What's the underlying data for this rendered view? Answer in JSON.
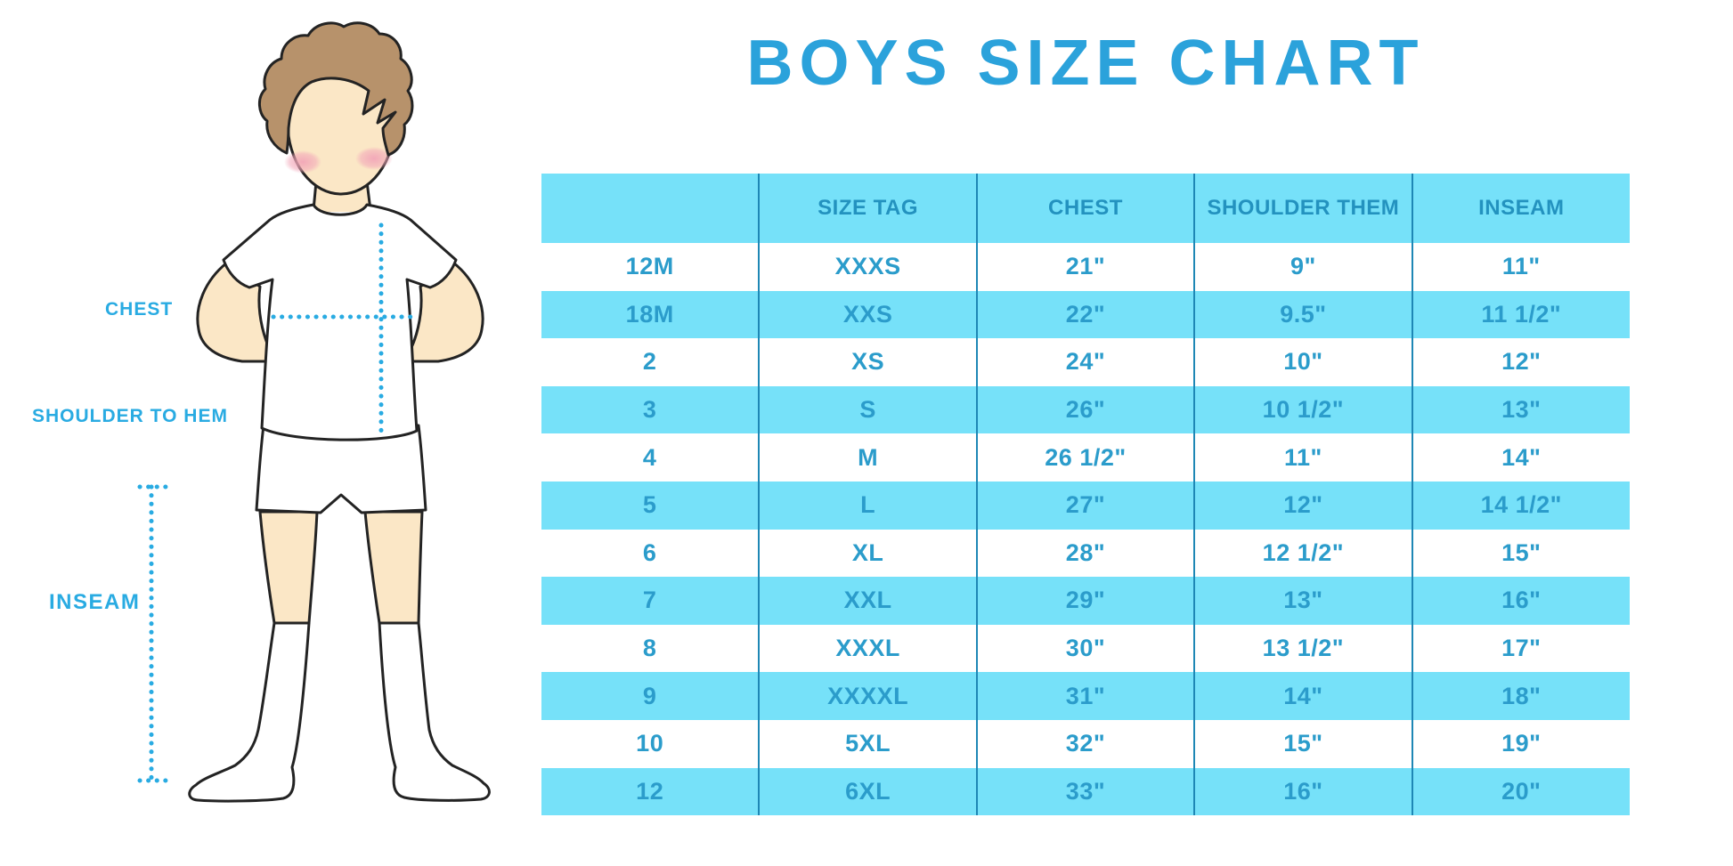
{
  "title": "BOYS SIZE CHART",
  "figure_labels": {
    "chest": "CHEST",
    "shoulder_to_hem": "SHOULDER TO HEM",
    "inseam": "INSEAM"
  },
  "chart_data": {
    "type": "table",
    "title": "BOYS SIZE CHART",
    "columns": [
      "",
      "SIZE TAG",
      "CHEST",
      "SHOULDER THEM",
      "INSEAM"
    ],
    "rows": [
      [
        "12M",
        "XXXS",
        "21\"",
        "9\"",
        "11\""
      ],
      [
        "18M",
        "XXS",
        "22\"",
        "9.5\"",
        "11 1/2\""
      ],
      [
        "2",
        "XS",
        "24\"",
        "10\"",
        "12\""
      ],
      [
        "3",
        "S",
        "26\"",
        "10 1/2\"",
        "13\""
      ],
      [
        "4",
        "M",
        "26 1/2\"",
        "11\"",
        "14\""
      ],
      [
        "5",
        "L",
        "27\"",
        "12\"",
        "14 1/2\""
      ],
      [
        "6",
        "XL",
        "28\"",
        "12 1/2\"",
        "15\""
      ],
      [
        "7",
        "XXL",
        "29\"",
        "13\"",
        "16\""
      ],
      [
        "8",
        "XXXL",
        "30\"",
        "13 1/2\"",
        "17\""
      ],
      [
        "9",
        "XXXXL",
        "31\"",
        "14\"",
        "18\""
      ],
      [
        "10",
        "5XL",
        "32\"",
        "15\"",
        "19\""
      ],
      [
        "12",
        "6XL",
        "33\"",
        "16\"",
        "20\""
      ]
    ]
  },
  "colors": {
    "title_blue": "#2BA2DB",
    "label_cyan": "#29ABE2",
    "row_cyan": "#76E1F9",
    "header_text": "#2392BF",
    "cell_text": "#2B9CCB",
    "column_separator": "#1E87B5",
    "dotted_line": "#29ABE2",
    "skin": "#FBE7C6",
    "hair": "#B7926B",
    "blush": "#F2A6B8",
    "outline": "#232323"
  }
}
